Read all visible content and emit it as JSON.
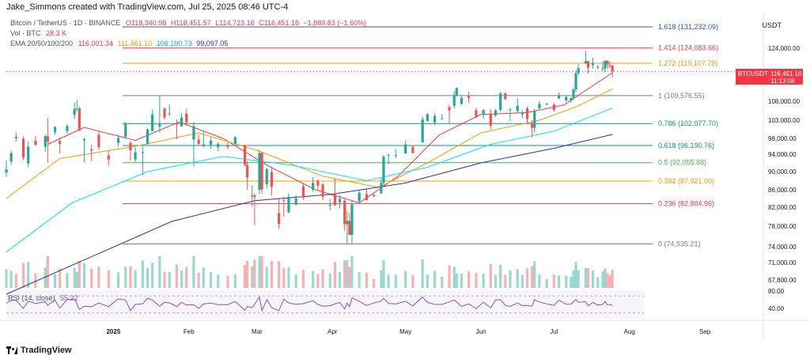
{
  "header": {
    "credit": "Jake_Simmons created with TradingView.com, Jul 25, 2025 08:46 UTC-4",
    "symbol": "Bitcoin / TetherUS · 1D · BINANCE",
    "ohlc": {
      "o": "O118,340.98",
      "h": "H118,451.57",
      "l": "L114,723.16",
      "c": "C116,451.16",
      "chg": "−1,889.83 (−1.60%)"
    },
    "volume": {
      "label": "Vol · BTC",
      "value": "28.3 K"
    },
    "ema": {
      "label": "EMA 20/50/100/200",
      "v20": "116,001.34",
      "v50": "111,461.10",
      "v100": "106,190.73",
      "v200": "99,097.05"
    },
    "currency": "USDT"
  },
  "rsi": {
    "label": "RSI (14, close)",
    "value": "55.32",
    "levels": [
      "80.00",
      "40.00"
    ]
  },
  "price_tag": {
    "symbol": "BTCUSDT",
    "price": "116,451.16",
    "countdown": "11:13:08"
  },
  "brand": {
    "logo_text": "TradingView"
  },
  "colors": {
    "up": "#26a69a",
    "down": "#ef5350",
    "ema20": "#f23645",
    "ema50": "#ff9800",
    "ema100": "#00e5ff",
    "ema200": "#2e2ab8",
    "rsi_line": "#7e57c2",
    "rsi_ma": "#f7c948"
  },
  "chart_data": {
    "type": "candlestick",
    "x_axis_labels": [
      "2025",
      "Feb",
      "Mar",
      "Apr",
      "May",
      "Jun",
      "Jul",
      "Aug",
      "Sep"
    ],
    "y_axis_labels": [
      "124,000.00",
      "116,000.00",
      "108,000.00",
      "103,000.00",
      "98,000.00",
      "94,000.00",
      "90,000.00",
      "86,000.00",
      "82,000.00",
      "78,000.00",
      "74,000.00",
      "71,000.00",
      "67,800.00"
    ],
    "y_ticks": [
      124000,
      116000,
      108000,
      103000,
      98000,
      94000,
      90000,
      86000,
      82000,
      78000,
      74000,
      71000,
      67800
    ],
    "fib_levels": [
      {
        "label": "1.618 (131,232.09)",
        "value": 131232.09,
        "color": "#3f51b5"
      },
      {
        "label": "1.414 (124,083.66)",
        "value": 124083.66,
        "color": "#f23645"
      },
      {
        "label": "1.272 (119,107.79)",
        "value": 119107.79,
        "color": "#ff9800"
      },
      {
        "label": "1 (109,576.55)",
        "value": 109576.55,
        "color": "#787b86"
      },
      {
        "label": "0.786 (102,077.70)",
        "value": 102077.7,
        "color": "#089981"
      },
      {
        "label": "0.618 (96,190.76)",
        "value": 96190.76,
        "color": "#089981"
      },
      {
        "label": "0.5 (92,055.88)",
        "value": 92055.88,
        "color": "#4caf50"
      },
      {
        "label": "0.382 (87,921.00)",
        "value": 87921.0,
        "color": "#ff9800"
      },
      {
        "label": "0.236 (82,804.96)",
        "value": 82804.96,
        "color": "#f23645"
      },
      {
        "label": "0 (74,535.21)",
        "value": 74535.21,
        "color": "#787b86"
      }
    ],
    "candles": [
      {
        "date": "2024-11-18",
        "o": 89800,
        "h": 92600,
        "l": 88800,
        "c": 90500
      },
      {
        "date": "2024-11-20",
        "o": 92300,
        "h": 94900,
        "l": 91500,
        "c": 94300
      },
      {
        "date": "2024-11-22",
        "o": 98400,
        "h": 99600,
        "l": 97200,
        "c": 98000
      },
      {
        "date": "2024-11-25",
        "o": 97900,
        "h": 98500,
        "l": 92600,
        "c": 93200
      },
      {
        "date": "2024-11-27",
        "o": 91900,
        "h": 97200,
        "l": 91000,
        "c": 95900
      },
      {
        "date": "2024-11-30",
        "o": 97400,
        "h": 98700,
        "l": 96100,
        "c": 96400
      },
      {
        "date": "2024-12-04",
        "o": 95900,
        "h": 99000,
        "l": 94600,
        "c": 98600
      },
      {
        "date": "2024-12-05",
        "o": 98600,
        "h": 103600,
        "l": 92100,
        "c": 97200
      },
      {
        "date": "2024-12-08",
        "o": 99800,
        "h": 101400,
        "l": 99000,
        "c": 101100
      },
      {
        "date": "2024-12-10",
        "o": 97300,
        "h": 98200,
        "l": 94200,
        "c": 96600
      },
      {
        "date": "2024-12-13",
        "o": 100000,
        "h": 101900,
        "l": 99200,
        "c": 101400
      },
      {
        "date": "2024-12-16",
        "o": 104400,
        "h": 107700,
        "l": 103300,
        "c": 106000
      },
      {
        "date": "2024-12-17",
        "o": 106000,
        "h": 108300,
        "l": 105300,
        "c": 106100
      },
      {
        "date": "2024-12-18",
        "o": 106100,
        "h": 106500,
        "l": 100000,
        "c": 100200
      },
      {
        "date": "2024-12-20",
        "o": 97500,
        "h": 98000,
        "l": 92200,
        "c": 97800
      },
      {
        "date": "2024-12-23",
        "o": 95200,
        "h": 96400,
        "l": 92400,
        "c": 94900
      },
      {
        "date": "2024-12-26",
        "o": 99000,
        "h": 99900,
        "l": 95200,
        "c": 95800
      },
      {
        "date": "2024-12-30",
        "o": 93700,
        "h": 94900,
        "l": 91400,
        "c": 92800
      },
      {
        "date": "2025-01-03",
        "o": 96900,
        "h": 98900,
        "l": 96000,
        "c": 98100
      },
      {
        "date": "2025-01-06",
        "o": 98400,
        "h": 102500,
        "l": 97900,
        "c": 102200
      },
      {
        "date": "2025-01-08",
        "o": 96900,
        "h": 97300,
        "l": 92500,
        "c": 95000
      },
      {
        "date": "2025-01-10",
        "o": 92800,
        "h": 95800,
        "l": 92200,
        "c": 94500
      },
      {
        "date": "2025-01-13",
        "o": 94500,
        "h": 95900,
        "l": 89300,
        "c": 94500
      },
      {
        "date": "2025-01-15",
        "o": 96500,
        "h": 100700,
        "l": 96500,
        "c": 100500
      },
      {
        "date": "2025-01-17",
        "o": 100000,
        "h": 105800,
        "l": 99900,
        "c": 104500
      },
      {
        "date": "2025-01-20",
        "o": 101300,
        "h": 109600,
        "l": 99600,
        "c": 102000
      },
      {
        "date": "2025-01-22",
        "o": 106100,
        "h": 106300,
        "l": 103200,
        "c": 103700
      },
      {
        "date": "2025-01-24",
        "o": 104800,
        "h": 107100,
        "l": 104100,
        "c": 104800
      },
      {
        "date": "2025-01-27",
        "o": 102100,
        "h": 103200,
        "l": 97800,
        "c": 102000
      },
      {
        "date": "2025-01-29",
        "o": 101300,
        "h": 104800,
        "l": 101300,
        "c": 103700
      },
      {
        "date": "2025-01-31",
        "o": 104700,
        "h": 106000,
        "l": 101500,
        "c": 102400
      },
      {
        "date": "2025-02-03",
        "o": 97700,
        "h": 102500,
        "l": 91200,
        "c": 101400
      },
      {
        "date": "2025-02-05",
        "o": 97700,
        "h": 99000,
        "l": 96200,
        "c": 96600
      },
      {
        "date": "2025-02-07",
        "o": 96500,
        "h": 100100,
        "l": 95700,
        "c": 96500
      },
      {
        "date": "2025-02-10",
        "o": 96400,
        "h": 98300,
        "l": 95300,
        "c": 97400
      },
      {
        "date": "2025-02-13",
        "o": 95800,
        "h": 97000,
        "l": 94800,
        "c": 96600
      },
      {
        "date": "2025-02-17",
        "o": 96100,
        "h": 97000,
        "l": 95200,
        "c": 95800
      },
      {
        "date": "2025-02-20",
        "o": 96600,
        "h": 98700,
        "l": 96400,
        "c": 98300
      },
      {
        "date": "2025-02-24",
        "o": 96200,
        "h": 96400,
        "l": 91200,
        "c": 91500
      },
      {
        "date": "2025-02-25",
        "o": 91500,
        "h": 92500,
        "l": 86000,
        "c": 88700
      },
      {
        "date": "2025-02-27",
        "o": 84700,
        "h": 87000,
        "l": 82200,
        "c": 84700
      },
      {
        "date": "2025-02-28",
        "o": 84700,
        "h": 85100,
        "l": 78200,
        "c": 84300
      },
      {
        "date": "2025-03-02",
        "o": 86000,
        "h": 95000,
        "l": 85000,
        "c": 94300
      },
      {
        "date": "2025-03-03",
        "o": 94300,
        "h": 94400,
        "l": 85100,
        "c": 86100
      },
      {
        "date": "2025-03-05",
        "o": 87200,
        "h": 90900,
        "l": 86300,
        "c": 90600
      },
      {
        "date": "2025-03-07",
        "o": 89900,
        "h": 91200,
        "l": 84700,
        "c": 86700
      },
      {
        "date": "2025-03-10",
        "o": 80700,
        "h": 83900,
        "l": 77500,
        "c": 78500
      },
      {
        "date": "2025-03-12",
        "o": 83700,
        "h": 84300,
        "l": 80000,
        "c": 83500
      },
      {
        "date": "2025-03-14",
        "o": 80900,
        "h": 85200,
        "l": 80700,
        "c": 84400
      },
      {
        "date": "2025-03-17",
        "o": 82600,
        "h": 84700,
        "l": 82400,
        "c": 84000
      },
      {
        "date": "2025-03-20",
        "o": 86800,
        "h": 87400,
        "l": 83700,
        "c": 84200
      },
      {
        "date": "2025-03-24",
        "o": 86000,
        "h": 88800,
        "l": 85500,
        "c": 87500
      },
      {
        "date": "2025-03-26",
        "o": 88000,
        "h": 88300,
        "l": 85900,
        "c": 86900
      },
      {
        "date": "2025-03-28",
        "o": 87200,
        "h": 87500,
        "l": 83600,
        "c": 84400
      },
      {
        "date": "2025-03-31",
        "o": 82400,
        "h": 83900,
        "l": 81300,
        "c": 82500
      },
      {
        "date": "2025-04-02",
        "o": 85200,
        "h": 88500,
        "l": 82300,
        "c": 82500
      },
      {
        "date": "2025-04-04",
        "o": 83100,
        "h": 84700,
        "l": 81700,
        "c": 83900
      },
      {
        "date": "2025-04-06",
        "o": 83500,
        "h": 83800,
        "l": 77100,
        "c": 78400
      },
      {
        "date": "2025-04-07",
        "o": 78400,
        "h": 81200,
        "l": 74500,
        "c": 79100
      },
      {
        "date": "2025-04-08",
        "o": 79100,
        "h": 80800,
        "l": 76200,
        "c": 76300
      },
      {
        "date": "2025-04-09",
        "o": 76300,
        "h": 83500,
        "l": 74600,
        "c": 82600
      },
      {
        "date": "2025-04-12",
        "o": 83400,
        "h": 85800,
        "l": 82800,
        "c": 85300
      },
      {
        "date": "2025-04-15",
        "o": 85000,
        "h": 86400,
        "l": 83600,
        "c": 83600
      },
      {
        "date": "2025-04-18",
        "o": 84800,
        "h": 85100,
        "l": 84300,
        "c": 84500
      },
      {
        "date": "2025-04-21",
        "o": 85200,
        "h": 88600,
        "l": 85100,
        "c": 87500
      },
      {
        "date": "2025-04-22",
        "o": 87500,
        "h": 93800,
        "l": 87100,
        "c": 93400
      },
      {
        "date": "2025-04-24",
        "o": 93700,
        "h": 94000,
        "l": 91700,
        "c": 93900
      },
      {
        "date": "2025-04-27",
        "o": 93700,
        "h": 95300,
        "l": 93100,
        "c": 93800
      },
      {
        "date": "2025-05-01",
        "o": 94200,
        "h": 97400,
        "l": 94100,
        "c": 96500
      },
      {
        "date": "2025-05-04",
        "o": 95900,
        "h": 96300,
        "l": 94200,
        "c": 94300
      },
      {
        "date": "2025-05-08",
        "o": 97000,
        "h": 103900,
        "l": 96900,
        "c": 103200
      },
      {
        "date": "2025-05-10",
        "o": 102800,
        "h": 104800,
        "l": 102600,
        "c": 104600
      },
      {
        "date": "2025-05-13",
        "o": 102400,
        "h": 104900,
        "l": 101600,
        "c": 104100
      },
      {
        "date": "2025-05-16",
        "o": 103400,
        "h": 104600,
        "l": 103100,
        "c": 103500
      },
      {
        "date": "2025-05-19",
        "o": 106400,
        "h": 107100,
        "l": 102000,
        "c": 105600
      },
      {
        "date": "2025-05-21",
        "o": 106800,
        "h": 110800,
        "l": 106100,
        "c": 109700
      },
      {
        "date": "2025-05-22",
        "o": 109700,
        "h": 111900,
        "l": 109300,
        "c": 111700
      },
      {
        "date": "2025-05-24",
        "o": 107300,
        "h": 109500,
        "l": 107000,
        "c": 108900
      },
      {
        "date": "2025-05-27",
        "o": 109400,
        "h": 110700,
        "l": 107500,
        "c": 108900
      },
      {
        "date": "2025-05-30",
        "o": 105600,
        "h": 106300,
        "l": 103600,
        "c": 103900
      },
      {
        "date": "2025-06-02",
        "o": 104600,
        "h": 105900,
        "l": 103400,
        "c": 105700
      },
      {
        "date": "2025-06-05",
        "o": 104700,
        "h": 105900,
        "l": 100400,
        "c": 101500
      },
      {
        "date": "2025-06-07",
        "o": 104300,
        "h": 105900,
        "l": 103900,
        "c": 105600
      },
      {
        "date": "2025-06-09",
        "o": 105700,
        "h": 110600,
        "l": 105300,
        "c": 110200
      },
      {
        "date": "2025-06-11",
        "o": 110200,
        "h": 110400,
        "l": 108300,
        "c": 108600
      },
      {
        "date": "2025-06-13",
        "o": 105900,
        "h": 106200,
        "l": 102700,
        "c": 105900
      },
      {
        "date": "2025-06-16",
        "o": 105400,
        "h": 108900,
        "l": 104900,
        "c": 106800
      },
      {
        "date": "2025-06-18",
        "o": 104500,
        "h": 105600,
        "l": 103500,
        "c": 104900
      },
      {
        "date": "2025-06-20",
        "o": 106100,
        "h": 106500,
        "l": 102300,
        "c": 103300
      },
      {
        "date": "2025-06-22",
        "o": 102200,
        "h": 103000,
        "l": 98200,
        "c": 100900
      },
      {
        "date": "2025-06-23",
        "o": 100900,
        "h": 106000,
        "l": 99600,
        "c": 105300
      },
      {
        "date": "2025-06-25",
        "o": 106100,
        "h": 108100,
        "l": 105900,
        "c": 107300
      },
      {
        "date": "2025-06-28",
        "o": 107100,
        "h": 107600,
        "l": 106900,
        "c": 107300
      },
      {
        "date": "2025-07-01",
        "o": 107100,
        "h": 107500,
        "l": 105200,
        "c": 105700
      },
      {
        "date": "2025-07-03",
        "o": 108800,
        "h": 110500,
        "l": 108600,
        "c": 109600
      },
      {
        "date": "2025-07-06",
        "o": 108200,
        "h": 109600,
        "l": 107800,
        "c": 109200
      },
      {
        "date": "2025-07-08",
        "o": 108200,
        "h": 109000,
        "l": 107500,
        "c": 108900
      },
      {
        "date": "2025-07-09",
        "o": 108900,
        "h": 111900,
        "l": 108300,
        "c": 111300
      },
      {
        "date": "2025-07-10",
        "o": 111300,
        "h": 116800,
        "l": 110600,
        "c": 115900
      },
      {
        "date": "2025-07-11",
        "o": 115900,
        "h": 118800,
        "l": 115200,
        "c": 117500
      },
      {
        "date": "2025-07-14",
        "o": 119100,
        "h": 123200,
        "l": 118900,
        "c": 119800
      },
      {
        "date": "2025-07-15",
        "o": 119800,
        "h": 119900,
        "l": 115700,
        "c": 117700
      },
      {
        "date": "2025-07-17",
        "o": 118600,
        "h": 120900,
        "l": 117400,
        "c": 119200
      },
      {
        "date": "2025-07-19",
        "o": 117800,
        "h": 118600,
        "l": 117200,
        "c": 117900
      },
      {
        "date": "2025-07-21",
        "o": 117300,
        "h": 119700,
        "l": 116500,
        "c": 117400
      },
      {
        "date": "2025-07-22",
        "o": 117400,
        "h": 120200,
        "l": 116100,
        "c": 119900
      },
      {
        "date": "2025-07-23",
        "o": 119900,
        "h": 120000,
        "l": 117300,
        "c": 118700
      },
      {
        "date": "2025-07-24",
        "o": 118400,
        "h": 119500,
        "l": 117500,
        "c": 118300
      },
      {
        "date": "2025-07-25",
        "o": 118340.98,
        "h": 118451.57,
        "l": 114723.16,
        "c": 116451.16
      }
    ],
    "ema_lines": {
      "ema20": [
        [
          "2024-12-05",
          96500
        ],
        [
          "2024-12-20",
          101000
        ],
        [
          "2025-01-10",
          97500
        ],
        [
          "2025-01-28",
          102500
        ],
        [
          "2025-02-15",
          98000
        ],
        [
          "2025-03-05",
          91500
        ],
        [
          "2025-03-25",
          86000
        ],
        [
          "2025-04-12",
          83000
        ],
        [
          "2025-04-28",
          89000
        ],
        [
          "2025-05-15",
          99000
        ],
        [
          "2025-06-01",
          104500
        ],
        [
          "2025-06-20",
          105000
        ],
        [
          "2025-07-05",
          107000
        ],
        [
          "2025-07-25",
          116001.34
        ]
      ],
      "ema50": [
        [
          "2024-11-18",
          84000
        ],
        [
          "2024-12-10",
          93000
        ],
        [
          "2025-01-10",
          96000
        ],
        [
          "2025-02-05",
          99500
        ],
        [
          "2025-03-01",
          95000
        ],
        [
          "2025-03-28",
          89000
        ],
        [
          "2025-04-20",
          86500
        ],
        [
          "2025-05-10",
          92000
        ],
        [
          "2025-06-01",
          99500
        ],
        [
          "2025-06-25",
          103000
        ],
        [
          "2025-07-10",
          106500
        ],
        [
          "2025-07-25",
          111461.1
        ]
      ],
      "ema100": [
        [
          "2024-11-18",
          73000
        ],
        [
          "2024-12-15",
          83000
        ],
        [
          "2025-01-15",
          90000
        ],
        [
          "2025-02-15",
          93500
        ],
        [
          "2025-03-15",
          91500
        ],
        [
          "2025-04-15",
          88000
        ],
        [
          "2025-05-10",
          91000
        ],
        [
          "2025-06-05",
          96500
        ],
        [
          "2025-07-01",
          100000
        ],
        [
          "2025-07-25",
          106190.73
        ]
      ],
      "ema200": [
        [
          "2024-11-18",
          65000
        ],
        [
          "2024-12-20",
          71500
        ],
        [
          "2025-01-25",
          79000
        ],
        [
          "2025-02-28",
          83500
        ],
        [
          "2025-04-01",
          85000
        ],
        [
          "2025-05-01",
          87500
        ],
        [
          "2025-06-01",
          92000
        ],
        [
          "2025-07-01",
          95500
        ],
        [
          "2025-07-25",
          99097.05
        ]
      ]
    }
  }
}
